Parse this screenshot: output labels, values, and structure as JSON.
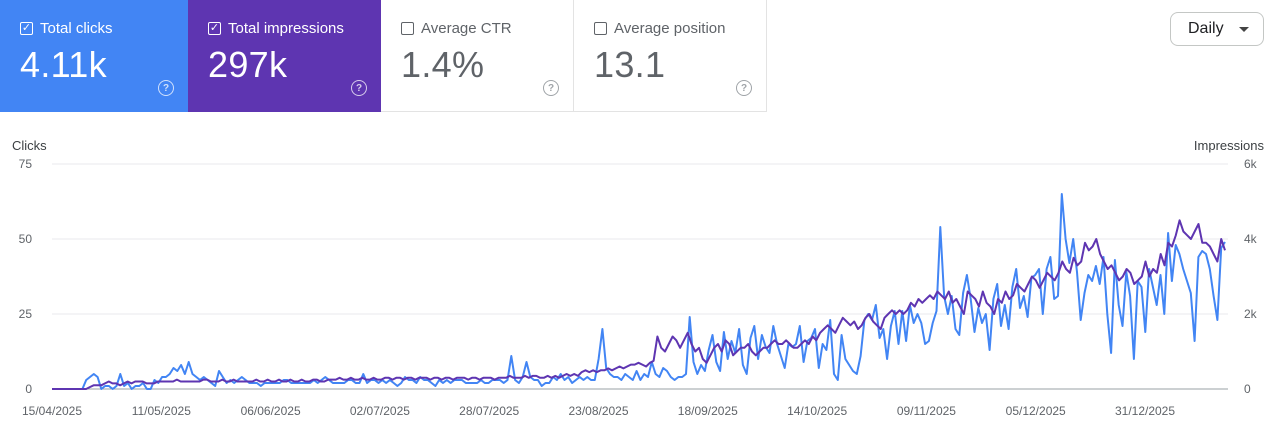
{
  "cards": [
    {
      "label": "Total clicks",
      "value": "4.11k",
      "checked": true,
      "color": "#4285f4"
    },
    {
      "label": "Total impressions",
      "value": "297k",
      "checked": true,
      "color": "#5e35b1"
    },
    {
      "label": "Average CTR",
      "value": "1.4%",
      "checked": false
    },
    {
      "label": "Average position",
      "value": "13.1",
      "checked": false
    }
  ],
  "granularity": {
    "label": "Daily"
  },
  "chart_data": {
    "type": "line",
    "left_axis": {
      "title": "Clicks",
      "ticks": [
        "75",
        "50",
        "25",
        "0"
      ],
      "range": [
        0,
        75
      ]
    },
    "right_axis": {
      "title": "Impressions",
      "ticks": [
        "6k",
        "4k",
        "2k",
        "0"
      ],
      "range": [
        0,
        6000
      ]
    },
    "x_labels": [
      "15/04/2025",
      "11/05/2025",
      "06/06/2025",
      "02/07/2025",
      "28/07/2025",
      "23/08/2025",
      "18/09/2025",
      "14/10/2025",
      "09/11/2025",
      "05/12/2025",
      "31/12/2025"
    ],
    "grid": true,
    "series": [
      {
        "color": "#4285f4",
        "axis": "left",
        "values": [
          0,
          0,
          0,
          0,
          0,
          0,
          0,
          0,
          0,
          3,
          4,
          5,
          4,
          0,
          1,
          1,
          0,
          1,
          5,
          1,
          2,
          0,
          1,
          1,
          2,
          0,
          0,
          3,
          2,
          4,
          4,
          5,
          7,
          6,
          8,
          5,
          9,
          5,
          4,
          3,
          4,
          3,
          2,
          1,
          6,
          4,
          2,
          3,
          2,
          3,
          4,
          3,
          2,
          2,
          2,
          1,
          2,
          2,
          2,
          2,
          2,
          3,
          3,
          2,
          2,
          2,
          2,
          2,
          2,
          3,
          2,
          3,
          4,
          3,
          2,
          2,
          2,
          2,
          3,
          3,
          2,
          2,
          5,
          2,
          3,
          3,
          2,
          3,
          2,
          3,
          2,
          1,
          2,
          4,
          3,
          3,
          2,
          4,
          3,
          3,
          2,
          1,
          3,
          2,
          3,
          2,
          3,
          3,
          3,
          2,
          2,
          2,
          2,
          3,
          2,
          2,
          3,
          3,
          3,
          2,
          3,
          11,
          3,
          2,
          4,
          9,
          4,
          3,
          3,
          1,
          2,
          2,
          4,
          3,
          5,
          3,
          4,
          2,
          3,
          4,
          3,
          4,
          3,
          3,
          10,
          20,
          7,
          5,
          4,
          4,
          3,
          5,
          4,
          3,
          6,
          3,
          5,
          4,
          9,
          5,
          4,
          7,
          6,
          4,
          3,
          4,
          4,
          5,
          24,
          9,
          5,
          8,
          6,
          13,
          18,
          9,
          6,
          19,
          10,
          16,
          12,
          20,
          8,
          5,
          17,
          21,
          10,
          18,
          14,
          12,
          21,
          15,
          11,
          7,
          15,
          14,
          15,
          21,
          9,
          16,
          17,
          20,
          7,
          15,
          13,
          23,
          5,
          3,
          18,
          10,
          8,
          6,
          5,
          11,
          23,
          25,
          23,
          28,
          17,
          20,
          10,
          21,
          26,
          15,
          26,
          16,
          28,
          22,
          25,
          22,
          15,
          16,
          22,
          26,
          54,
          31,
          25,
          31,
          20,
          18,
          32,
          38,
          30,
          19,
          27,
          22,
          25,
          13,
          30,
          35,
          21,
          28,
          20,
          34,
          40,
          27,
          31,
          24,
          37,
          38,
          40,
          25,
          40,
          44,
          30,
          31,
          65,
          50,
          42,
          50,
          39,
          23,
          32,
          38,
          36,
          41,
          35,
          44,
          25,
          12,
          43,
          28,
          21,
          39,
          31,
          10,
          36,
          34,
          19,
          40,
          34,
          28,
          38,
          25,
          52,
          36,
          48,
          45,
          40,
          36,
          32,
          16,
          44,
          46,
          45,
          40,
          31,
          23,
          47,
          49
        ]
      },
      {
        "color": "#5e35b1",
        "axis": "right",
        "values": [
          0,
          0,
          0,
          0,
          0,
          0,
          0,
          0,
          0,
          0,
          50,
          100,
          100,
          100,
          150,
          200,
          150,
          150,
          100,
          150,
          200,
          150,
          200,
          200,
          200,
          150,
          150,
          150,
          200,
          200,
          200,
          200,
          200,
          250,
          200,
          200,
          200,
          200,
          200,
          200,
          250,
          250,
          200,
          200,
          200,
          250,
          200,
          200,
          250,
          200,
          200,
          200,
          200,
          200,
          250,
          200,
          200,
          250,
          200,
          200,
          250,
          200,
          200,
          250,
          200,
          200,
          250,
          200,
          200,
          250,
          250,
          200,
          200,
          250,
          250,
          250,
          300,
          250,
          250,
          300,
          250,
          250,
          300,
          250,
          250,
          300,
          250,
          250,
          300,
          300,
          250,
          300,
          300,
          250,
          300,
          300,
          250,
          300,
          300,
          300,
          250,
          300,
          300,
          250,
          300,
          300,
          250,
          300,
          300,
          300,
          250,
          300,
          300,
          250,
          300,
          300,
          300,
          250,
          300,
          300,
          300,
          350,
          300,
          300,
          300,
          350,
          300,
          350,
          350,
          300,
          300,
          350,
          300,
          350,
          300,
          350,
          400,
          350,
          400,
          350,
          450,
          500,
          450,
          500,
          450,
          500,
          500,
          550,
          500,
          550,
          600,
          550,
          600,
          650,
          650,
          700,
          650,
          600,
          700,
          750,
          1400,
          1100,
          1000,
          1200,
          1400,
          1300,
          1100,
          1300,
          1500,
          1200,
          1000,
          1100,
          800,
          700,
          900,
          1100,
          1200,
          1000,
          1300,
          1200,
          900,
          1000,
          1100,
          1100,
          1200,
          1000,
          900,
          1000,
          1100,
          1100,
          1200,
          1300,
          1200,
          1200,
          1300,
          1200,
          1100,
          1100,
          1200,
          1300,
          1200,
          1400,
          1300,
          1500,
          1600,
          1700,
          1600,
          1500,
          1700,
          1900,
          1800,
          1700,
          1800,
          1600,
          1700,
          1900,
          2000,
          1800,
          1700,
          1600,
          1900,
          2000,
          2100,
          2000,
          2100,
          2000,
          2100,
          2300,
          2200,
          2400,
          2300,
          2400,
          2500,
          2400,
          2600,
          2500,
          2400,
          2600,
          2300,
          2400,
          2200,
          2000,
          2600,
          2500,
          2400,
          2200,
          2600,
          2300,
          2200,
          2000,
          2400,
          2300,
          2600,
          2400,
          2500,
          2800,
          2700,
          2600,
          2800,
          3000,
          2900,
          2700,
          2900,
          3100,
          3000,
          2900,
          3100,
          3400,
          3200,
          3100,
          3500,
          3300,
          3400,
          3900,
          3700,
          3800,
          4000,
          3600,
          3400,
          3200,
          3300,
          3100,
          2900,
          3000,
          3200,
          3100,
          2800,
          2900,
          3000,
          3400,
          3000,
          3200,
          3100,
          3600,
          3300,
          3900,
          3800,
          4100,
          4500,
          4200,
          4100,
          4000,
          4200,
          4400,
          3900,
          3900,
          3800,
          3600,
          3400,
          4000,
          3700
        ]
      }
    ]
  }
}
